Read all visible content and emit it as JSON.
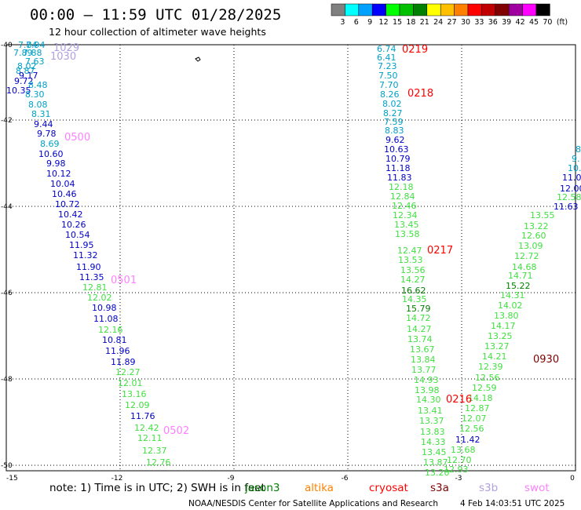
{
  "title": "00:00 – 11:59 UTC 01/28/2025",
  "subtitle": "12 hour collection of altimeter wave heights",
  "legend": {
    "values": [
      "3",
      "6",
      "9",
      "12",
      "15",
      "18",
      "21",
      "24",
      "27",
      "30",
      "33",
      "36",
      "39",
      "42",
      "45",
      "70"
    ],
    "unit": "(ft)",
    "colors": [
      "#808080",
      "#00ffff",
      "#00a0ff",
      "#0000ff",
      "#00ff00",
      "#00c000",
      "#008000",
      "#ffff00",
      "#ffc000",
      "#ff8000",
      "#ff0000",
      "#c00000",
      "#800000",
      "#a000a0",
      "#ff00ff",
      "#000000"
    ]
  },
  "axes": {
    "x_ticks": [
      "-15",
      "-12",
      "-9",
      "-6",
      "-3",
      "0"
    ],
    "y_ticks": [
      "-40",
      "-42",
      "-44",
      "-46",
      "-48",
      "-50"
    ]
  },
  "note": {
    "text": "note: 1) Time is in UTC; 2) SWH is in feet"
  },
  "satellites": [
    {
      "name": "jason3",
      "color": "#008000"
    },
    {
      "name": "altika",
      "color": "#ff8000"
    },
    {
      "name": "cryosat",
      "color": "#ff0000"
    },
    {
      "name": "s3a",
      "color": "#800000"
    },
    {
      "name": "s3b",
      "color": "#b0a0e0"
    },
    {
      "name": "swot",
      "color": "#ff80ff"
    }
  ],
  "credit": "NOAA/NESDIS Center for Satellite Applications and Research",
  "timestamp": "4 Feb 14:03:51 UTC 2025",
  "time_labels": [
    {
      "text": "1029",
      "color": "#b0a0e0"
    },
    {
      "text": "1030",
      "color": "#b0a0e0"
    },
    {
      "text": "0500",
      "color": "#ff80ff"
    },
    {
      "text": "0501",
      "color": "#ff80ff"
    },
    {
      "text": "0502",
      "color": "#ff80ff"
    },
    {
      "text": "0219",
      "color": "#ff0000"
    },
    {
      "text": "0218",
      "color": "#ff0000"
    },
    {
      "text": "0217",
      "color": "#ff0000"
    },
    {
      "text": "0216",
      "color": "#ff0000"
    },
    {
      "text": "0930",
      "color": "#800000"
    }
  ],
  "tracks": [
    {
      "name": "track-west",
      "points": [
        "7.84",
        "7.94",
        "7.89",
        "7.88",
        "7.63",
        "8.02",
        "8.87",
        "9.17",
        "9.72",
        "8.48",
        "10.35",
        "8.30",
        "8.08",
        "8.31",
        "9.44",
        "9.78",
        "8.69",
        "10.60",
        "9.98",
        "10.12",
        "10.04",
        "10.46",
        "10.72",
        "10.42",
        "10.26",
        "10.54",
        "11.95",
        "11.32",
        "11.90",
        "11.35",
        "12.81",
        "12.02",
        "10.98",
        "11.08",
        "12.16",
        "10.81",
        "11.96",
        "11.89",
        "12.27",
        "12.01",
        "13.16",
        "12.09",
        "11.76",
        "12.42",
        "12.11",
        "12.37",
        "12.76"
      ]
    },
    {
      "name": "track-center",
      "points": [
        "6.74",
        "6.41",
        "7.23",
        "7.50",
        "7.70",
        "8.26",
        "8.02",
        "8.27",
        "7.59",
        "8.83",
        "9.62",
        "10.63",
        "10.79",
        "11.18",
        "11.83",
        "12.18",
        "12.84",
        "12.46",
        "12.34",
        "13.45",
        "13.58",
        "12.47",
        "13.53",
        "13.56",
        "14.27",
        "16.62",
        "14.35",
        "15.79",
        "14.72",
        "14.27",
        "13.74",
        "13.67",
        "13.84",
        "13.77",
        "14.93",
        "13.98",
        "14.30",
        "13.41",
        "13.37",
        "13.83",
        "14.33",
        "13.45",
        "13.87",
        "13.20"
      ]
    },
    {
      "name": "track-east",
      "points": [
        "8",
        "9.",
        "10.",
        "11.0",
        "12.00",
        "12.58",
        "11.63",
        "13.55",
        "13.22",
        "12.60",
        "13.09",
        "12.72",
        "14.68",
        "14.71",
        "15.22",
        "14.31",
        "14.02",
        "13.80",
        "14.17",
        "13.25",
        "13.27",
        "14.21",
        "12.39",
        "12.56",
        "12.59",
        "14.18",
        "12.87",
        "12.07",
        "12.56",
        "11.42",
        "13.68",
        "12.70",
        "12.93"
      ]
    }
  ]
}
